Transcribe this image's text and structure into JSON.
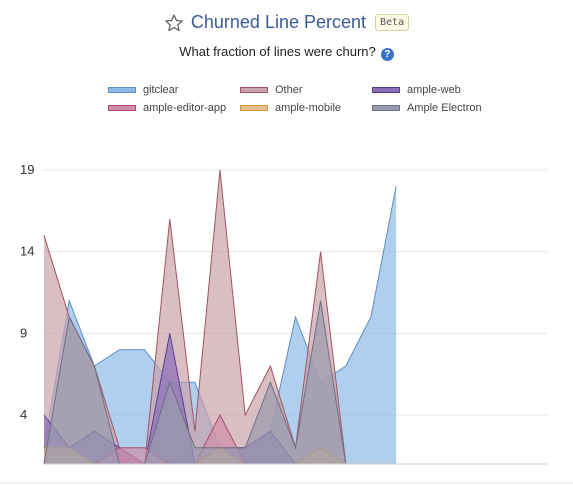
{
  "header": {
    "title": "Churned Line Percent",
    "badge": "Beta",
    "subtitle": "What fraction of lines were churn?",
    "help_glyph": "?",
    "star_icon": "star-outline-icon",
    "help_icon": "question-circle-icon"
  },
  "chart_data": {
    "type": "area",
    "x": [
      0,
      1,
      2,
      3,
      4,
      5,
      6,
      7,
      8,
      9,
      10,
      11,
      12,
      13,
      14,
      15,
      16,
      17,
      18,
      19,
      20
    ],
    "ylim": [
      1,
      19
    ],
    "yticks": [
      4,
      9,
      14,
      19
    ],
    "grid": true,
    "legend_position": "top",
    "series": [
      {
        "name": "gitclear",
        "fill": "#8fb9e6",
        "stroke": "#5b8fcc",
        "values": [
          2,
          11,
          7,
          8,
          8,
          6,
          6,
          2,
          2,
          3,
          10,
          6,
          7,
          10,
          18,
          null,
          null,
          null,
          null,
          null,
          null
        ]
      },
      {
        "name": "Other",
        "fill": "#c9a3ab",
        "stroke": "#a2545f",
        "values": [
          15,
          10,
          7,
          2,
          1,
          16,
          3,
          19,
          4,
          7,
          2,
          14,
          1,
          null,
          null,
          null,
          null,
          null,
          null,
          null,
          null
        ]
      },
      {
        "name": "ample-web",
        "fill": "#8a6eb8",
        "stroke": "#5a3d8f",
        "values": [
          4,
          2,
          3,
          2,
          1,
          9,
          1,
          2,
          2,
          3,
          1,
          1,
          1,
          null,
          null,
          null,
          null,
          null,
          null,
          null,
          null
        ]
      },
      {
        "name": "ample-editor-app",
        "fill": "#cf8fa8",
        "stroke": "#b04a74",
        "values": [
          1,
          1,
          1,
          2,
          2,
          1,
          1,
          4,
          1,
          1,
          1,
          1,
          1,
          null,
          null,
          null,
          null,
          null,
          null,
          null,
          null
        ]
      },
      {
        "name": "ample-mobile",
        "fill": "#e8c08a",
        "stroke": "#cf9648",
        "values": [
          2,
          2,
          1,
          1,
          1,
          1,
          1,
          2,
          1,
          1,
          1,
          2,
          1,
          null,
          null,
          null,
          null,
          null,
          null,
          null,
          null
        ]
      },
      {
        "name": "Ample Electron",
        "fill": "#9a9aae",
        "stroke": "#6e6e84",
        "values": [
          1,
          10,
          7,
          1,
          1,
          6,
          2,
          2,
          2,
          6,
          2,
          11,
          1,
          null,
          null,
          null,
          null,
          null,
          null,
          null,
          null
        ]
      }
    ]
  }
}
